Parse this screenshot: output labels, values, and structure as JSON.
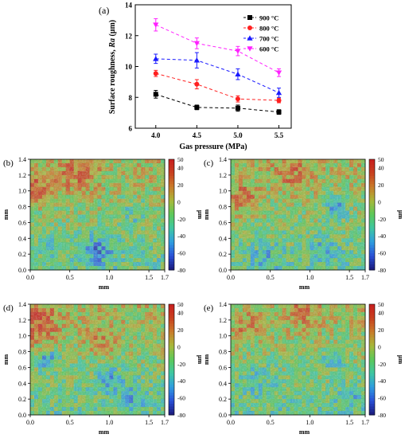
{
  "panel_labels": {
    "a": "(a)",
    "b": "(b)",
    "c": "(c)",
    "d": "(d)",
    "e": "(e)"
  },
  "colors": {
    "900": "#000000",
    "800": "#ff2020",
    "700": "#1a1aff",
    "600": "#ff20ff",
    "map_stops": [
      "#1a1a7a",
      "#2a4fd6",
      "#2f9de0",
      "#3ec7a3",
      "#5cc95a",
      "#a8b83a",
      "#c97b2a",
      "#c8401f",
      "#c81e1e"
    ]
  },
  "chart_data": [
    {
      "type": "line",
      "panel": "a",
      "xlabel": "Gas pressure (MPa)",
      "ylabel_prefix": "Surface roughness, ",
      "ylabel_italic": "Ra",
      "ylabel_suffix": " (μm)",
      "x": [
        4.0,
        4.5,
        5.0,
        5.5
      ],
      "x_tick_labels": [
        "4.0",
        "4.5",
        "5.0",
        "5.5"
      ],
      "xlim": [
        3.75,
        5.65
      ],
      "ylim": [
        6,
        14
      ],
      "y_ticks": [
        "6",
        "8",
        "10",
        "12",
        "14"
      ],
      "legend_position": "top-right",
      "series": [
        {
          "name": "900 °C",
          "color_key": "900",
          "marker": "square",
          "values": [
            8.2,
            7.35,
            7.3,
            7.05
          ],
          "errors": [
            0.25,
            0.15,
            0.2,
            0.15
          ]
        },
        {
          "name": "800 °C",
          "color_key": "800",
          "marker": "circle",
          "values": [
            9.55,
            8.85,
            7.9,
            7.8
          ],
          "errors": [
            0.2,
            0.3,
            0.2,
            0.15
          ]
        },
        {
          "name": "700 °C",
          "color_key": "700",
          "marker": "triangle-up",
          "values": [
            10.5,
            10.4,
            9.5,
            8.3
          ],
          "errors": [
            0.3,
            0.5,
            0.35,
            0.3
          ]
        },
        {
          "name": "600 °C",
          "color_key": "600",
          "marker": "triangle-down",
          "values": [
            12.7,
            11.5,
            11.0,
            9.6
          ],
          "errors": [
            0.4,
            0.35,
            0.3,
            0.25
          ]
        }
      ]
    },
    {
      "type": "heatmap",
      "panel": "b",
      "xlabel": "mm",
      "ylabel": "mm",
      "colorbar_label": "μm",
      "xlim": [
        0,
        1.7
      ],
      "ylim": [
        0,
        1.4
      ],
      "x_ticks": [
        "0.0",
        "0.5",
        "1.0",
        "1.5",
        "1.7"
      ],
      "x_tick_values": [
        0,
        0.5,
        1.0,
        1.5,
        1.7
      ],
      "y_ticks": [
        "0.0",
        "0.2",
        "0.4",
        "0.6",
        "0.8",
        "1.0",
        "1.2",
        "1.4"
      ],
      "colorbar_range": [
        -80,
        50
      ],
      "colorbar_ticks": [
        "50",
        "40",
        "20",
        "0",
        "-20",
        "-40",
        "-60",
        "-80"
      ]
    },
    {
      "type": "heatmap",
      "panel": "c",
      "xlabel": "mm",
      "ylabel": "mm",
      "colorbar_label": "μm",
      "xlim": [
        0,
        1.7
      ],
      "ylim": [
        0,
        1.4
      ],
      "x_ticks": [
        "0.0",
        "0.5",
        "1.0",
        "1.5",
        "1.7"
      ],
      "x_tick_values": [
        0,
        0.5,
        1.0,
        1.5,
        1.7
      ],
      "y_ticks": [
        "0.0",
        "0.2",
        "0.4",
        "0.6",
        "0.8",
        "1.0",
        "1.2",
        "1.4"
      ],
      "colorbar_range": [
        -80,
        50
      ],
      "colorbar_ticks": [
        "50",
        "40",
        "20",
        "0",
        "-20",
        "-40",
        "-60",
        "-80"
      ]
    },
    {
      "type": "heatmap",
      "panel": "d",
      "xlabel": "mm",
      "ylabel": "mm",
      "colorbar_label": "μm",
      "xlim": [
        0,
        1.7
      ],
      "ylim": [
        0,
        1.4
      ],
      "x_ticks": [
        "0.0",
        "0.5",
        "1.0",
        "1.5",
        "1.7"
      ],
      "x_tick_values": [
        0,
        0.5,
        1.0,
        1.5,
        1.7
      ],
      "y_ticks": [
        "0.0",
        "0.2",
        "0.4",
        "0.6",
        "0.8",
        "1.0",
        "1.2",
        "1.4"
      ],
      "colorbar_range": [
        -80,
        50
      ],
      "colorbar_ticks": [
        "50",
        "40",
        "20",
        "0",
        "-20",
        "-40",
        "-60",
        "-80"
      ]
    },
    {
      "type": "heatmap",
      "panel": "e",
      "xlabel": "mm",
      "ylabel": "mm",
      "colorbar_label": "μm",
      "xlim": [
        0,
        1.7
      ],
      "ylim": [
        0,
        1.4
      ],
      "x_ticks": [
        "0.0",
        "0.5",
        "1.0",
        "1.5",
        "1.7"
      ],
      "x_tick_values": [
        0,
        0.5,
        1.0,
        1.5,
        1.7
      ],
      "y_ticks": [
        "0.0",
        "0.2",
        "0.4",
        "0.6",
        "0.8",
        "1.0",
        "1.2",
        "1.4"
      ],
      "colorbar_range": [
        -80,
        50
      ],
      "colorbar_ticks": [
        "50",
        "40",
        "20",
        "0",
        "-20",
        "-40",
        "-60",
        "-80"
      ]
    }
  ]
}
